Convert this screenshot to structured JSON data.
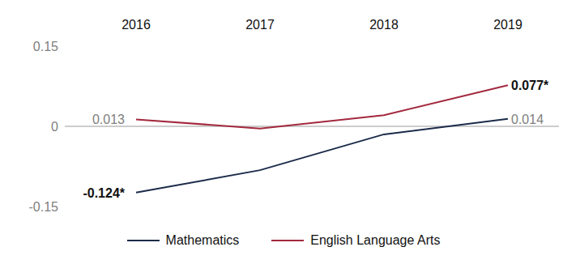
{
  "chart_data": {
    "type": "line",
    "categories": [
      "2016",
      "2017",
      "2018",
      "2019"
    ],
    "series": [
      {
        "name": "Mathematics",
        "color": "#1c2b4a",
        "values": [
          -0.124,
          -0.082,
          -0.015,
          0.014
        ],
        "value_labels": [
          "-0.124*",
          null,
          null,
          "0.014"
        ]
      },
      {
        "name": "English Language Arts",
        "color": "#a3293e",
        "values": [
          0.013,
          -0.004,
          0.021,
          0.077
        ],
        "value_labels": [
          "0.013",
          null,
          null,
          "0.077*"
        ]
      }
    ],
    "ylim": [
      -0.15,
      0.15
    ],
    "yticks": [
      -0.15,
      0,
      0.15
    ],
    "grid": false,
    "data_labels": true
  }
}
